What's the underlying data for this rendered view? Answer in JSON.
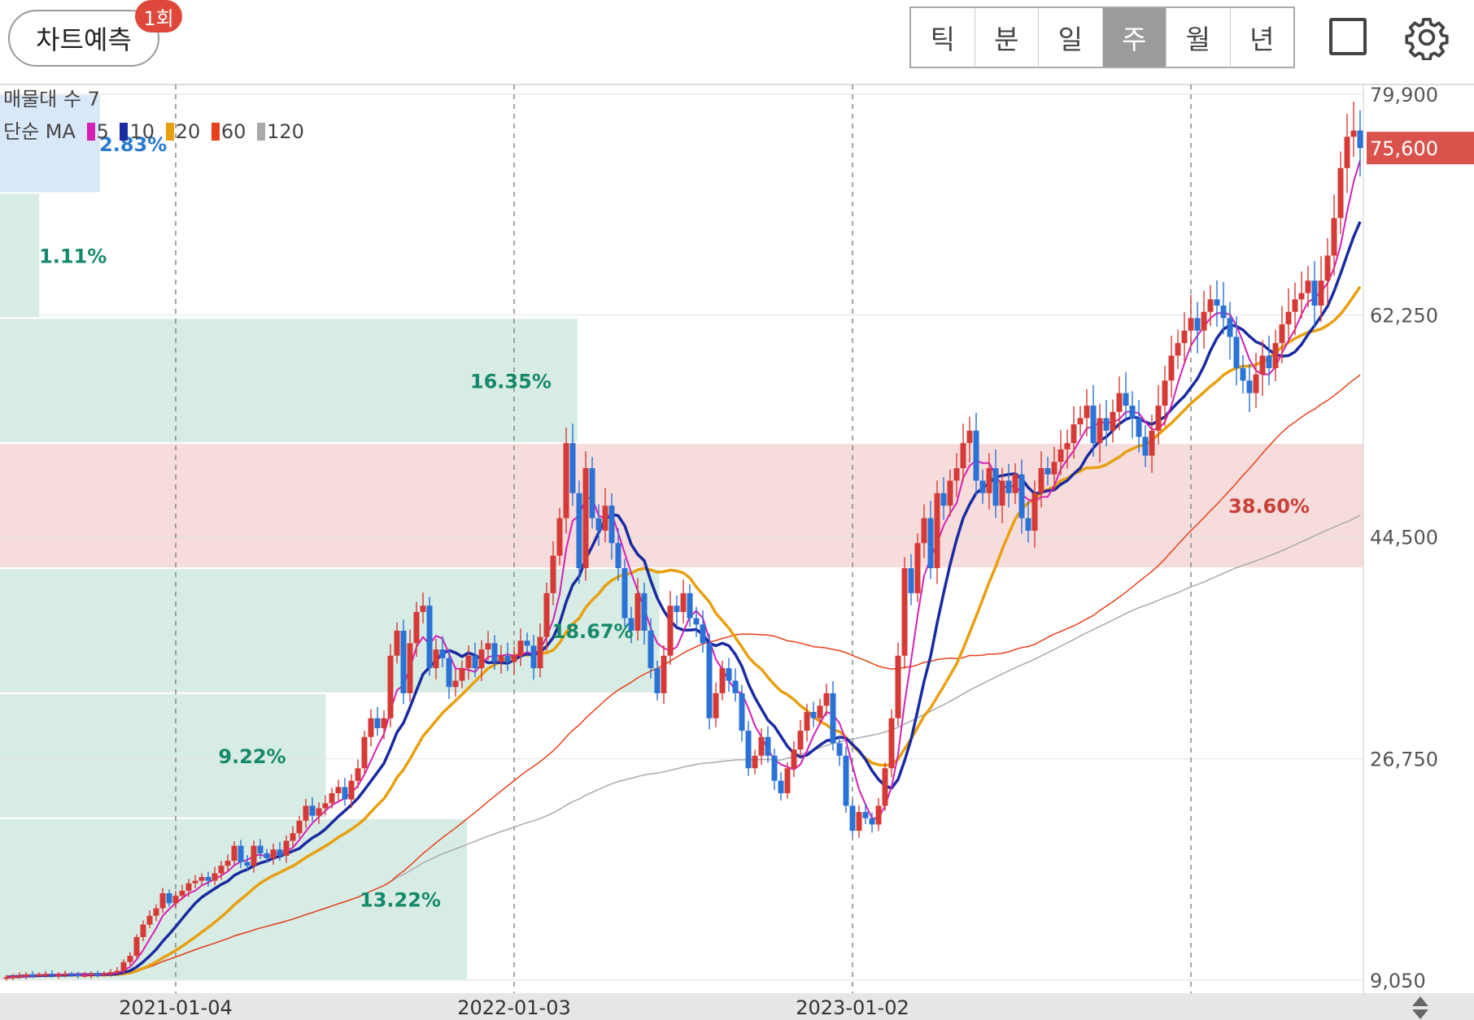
{
  "header": {
    "predict_label": "차트예측",
    "predict_badge": "1회",
    "period_tabs": [
      {
        "label": "틱",
        "active": false
      },
      {
        "label": "분",
        "active": false
      },
      {
        "label": "일",
        "active": false
      },
      {
        "label": "주",
        "active": true
      },
      {
        "label": "월",
        "active": false
      },
      {
        "label": "년",
        "active": false
      }
    ]
  },
  "legend": {
    "volume_profile_label": "매물대 수 7",
    "ma_label": "단순 MA",
    "ma_periods": [
      {
        "period": "5",
        "color": "#d420b4"
      },
      {
        "period": "10",
        "color": "#1a2aa0"
      },
      {
        "period": "20",
        "color": "#e8a010"
      },
      {
        "period": "60",
        "color": "#e8401a"
      },
      {
        "period": "120",
        "color": "#aaaaaa"
      }
    ]
  },
  "chart_data": {
    "type": "candlestick",
    "interval": "weekly",
    "y_axis": {
      "min": 9050,
      "max": 79900,
      "ticks": [
        79900,
        62250,
        44500,
        26750,
        9050
      ],
      "tick_labels": [
        "79,900",
        "62,250",
        "44,500",
        "26,750",
        "9,050"
      ]
    },
    "x_axis": {
      "ticks": [
        "2021-01-04",
        "2022-01-03",
        "2023-01-02"
      ]
    },
    "current_price": 75600,
    "current_price_label": "75,600",
    "volume_profile": [
      {
        "low": 72000,
        "high": 79900,
        "pct": 2.83,
        "label": "2.83%"
      },
      {
        "low": 62000,
        "high": 72000,
        "pct": 1.11,
        "label": "1.11%"
      },
      {
        "low": 52000,
        "high": 62000,
        "pct": 16.35,
        "label": "16.35%"
      },
      {
        "low": 42000,
        "high": 52000,
        "pct": 38.6,
        "label": "38.60%",
        "highlight": true
      },
      {
        "low": 32000,
        "high": 42000,
        "pct": 18.67,
        "label": "18.67%"
      },
      {
        "low": 22000,
        "high": 32000,
        "pct": 9.22,
        "label": "9.22%"
      },
      {
        "low": 9050,
        "high": 22000,
        "pct": 13.22,
        "label": "13.22%"
      }
    ],
    "ma_series": [
      {
        "name": "5",
        "color": "#d420b4"
      },
      {
        "name": "10",
        "color": "#1a2aa0"
      },
      {
        "name": "20",
        "color": "#e8a010"
      },
      {
        "name": "60",
        "color": "#e8401a"
      },
      {
        "name": "120",
        "color": "#aaaaaa"
      }
    ],
    "closes": [
      9300,
      9350,
      9400,
      9500,
      9450,
      9500,
      9550,
      9450,
      9500,
      9550,
      9500,
      9450,
      9450,
      9550,
      9500,
      9600,
      9700,
      9800,
      10500,
      11000,
      12500,
      13500,
      14200,
      14800,
      16000,
      15200,
      15800,
      16200,
      16800,
      17000,
      17300,
      17000,
      17600,
      18200,
      18600,
      19800,
      18500,
      18200,
      19800,
      19200,
      18800,
      19500,
      19000,
      20200,
      20800,
      21800,
      23000,
      22200,
      22800,
      23200,
      24000,
      24500,
      23500,
      25000,
      26000,
      28500,
      30000,
      29200,
      30000,
      35000,
      37000,
      32000,
      36000,
      38500,
      39000,
      34000,
      35500,
      34800,
      32500,
      33000,
      34000,
      35000,
      34000,
      35500,
      36000,
      34500,
      35000,
      34500,
      35000,
      36200,
      35800,
      34000,
      36500,
      40000,
      43000,
      46000,
      52000,
      48000,
      42000,
      50000,
      46000,
      45000,
      47000,
      44000,
      42000,
      38000,
      37000,
      40000,
      37000,
      34000,
      32000,
      35000,
      39000,
      38500,
      40000,
      38000,
      37500,
      36000,
      30000,
      32000,
      34000,
      33000,
      32000,
      29000,
      26000,
      27000,
      28500,
      27000,
      25000,
      24000,
      26000,
      27500,
      29000,
      30500,
      30000,
      31000,
      32000,
      28000,
      27000,
      23000,
      21000,
      22500,
      22000,
      21500,
      23000,
      26000,
      30000,
      35000,
      42000,
      40000,
      44000,
      46000,
      42000,
      48000,
      47000,
      49000,
      50000,
      52000,
      53000,
      49000,
      48000,
      50000,
      47000,
      49000,
      48000,
      49500,
      46000,
      45000,
      48000,
      50000,
      49500,
      50500,
      51500,
      52000,
      53500,
      54000,
      55000,
      52000,
      54000,
      53000,
      54500,
      56000,
      55000,
      54000,
      52500,
      51000,
      53000,
      55000,
      57000,
      59000,
      60000,
      61000,
      62000,
      61000,
      62500,
      63500,
      63000,
      62000,
      60500,
      58000,
      57000,
      56000,
      57500,
      59000,
      58000,
      60000,
      61500,
      62500,
      63500,
      64000,
      65000,
      63000,
      65000,
      67000,
      70000,
      74000,
      76500,
      77000,
      75600
    ]
  }
}
